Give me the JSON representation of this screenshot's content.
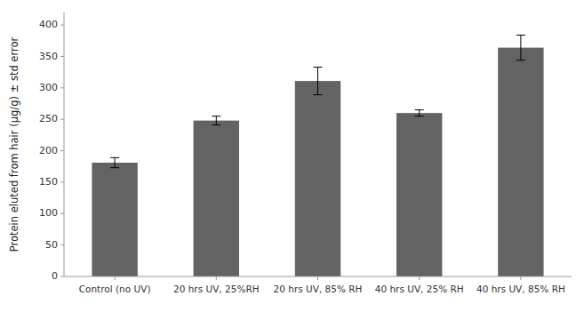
{
  "chart_data": {
    "type": "bar",
    "categories": [
      "Control (no UV)",
      "20 hrs UV, 25%RH",
      "20 hrs UV, 85% RH",
      "40 hrs UV, 25% RH",
      "40 hrs UV, 85% RH"
    ],
    "values": [
      181,
      248,
      311,
      260,
      364
    ],
    "errors": [
      8,
      7,
      22,
      5,
      20
    ],
    "color": "#636363",
    "ylabel": "Protein eluted from hair (μg/g) ± std error",
    "ylim": [
      0,
      420
    ],
    "yticks": [
      0,
      50,
      100,
      150,
      200,
      250,
      300,
      350,
      400
    ],
    "grid": false
  }
}
